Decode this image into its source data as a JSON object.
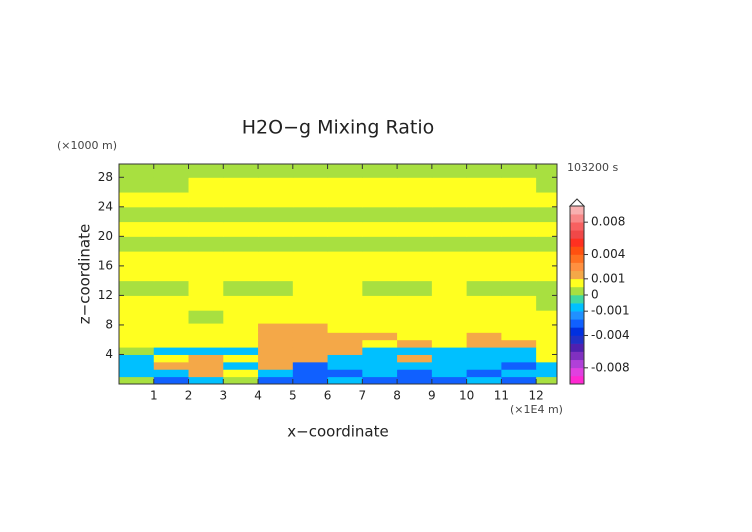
{
  "chart_data": {
    "type": "contour",
    "title": "H2O−g Mixing Ratio",
    "x_label": "x−coordinate",
    "y_label": "z−coordinate",
    "x_unit": "(×1E4 m)",
    "y_unit": "(×1000 m)",
    "time_label": "103200 s",
    "xlim": [
      0,
      12.6
    ],
    "ylim": [
      0,
      29.8
    ],
    "xticks": [
      1,
      2,
      3,
      4,
      5,
      6,
      7,
      8,
      9,
      10,
      11,
      12
    ],
    "yticks": [
      4,
      8,
      12,
      16,
      20,
      24,
      28
    ],
    "x": [
      0.5,
      1.5,
      2.5,
      3.5,
      4.5,
      5.5,
      6.5,
      7.5,
      8.5,
      9.5,
      10.5,
      11.5,
      12.5
    ],
    "y": [
      0.5,
      1.5,
      2.5,
      3.5,
      4.5,
      5.5,
      6.5,
      7.5,
      9,
      11,
      13,
      15,
      17,
      19,
      21,
      23,
      25,
      27,
      29
    ],
    "z": [
      [
        0.0002,
        -0.0025,
        -0.0007,
        0.0002,
        -0.0025,
        -0.0025,
        -0.0007,
        -0.0025,
        -0.0025,
        -0.0025,
        -0.0007,
        -0.0025,
        0.0002
      ],
      [
        -0.0007,
        -0.0007,
        0.0015,
        0.0007,
        -0.0007,
        -0.0025,
        -0.0025,
        -0.0007,
        -0.0025,
        -0.0007,
        -0.0025,
        -0.0007,
        -0.0007
      ],
      [
        -0.0007,
        0.0015,
        0.0015,
        -0.0007,
        0.0015,
        -0.0025,
        -0.0007,
        -0.0007,
        -0.0007,
        -0.0007,
        -0.0007,
        -0.0025,
        -0.0007
      ],
      [
        -0.0007,
        0.0007,
        0.0015,
        0.0007,
        0.0015,
        0.0015,
        -0.0007,
        -0.0007,
        0.0015,
        -0.0007,
        -0.0007,
        -0.0007,
        0.0007
      ],
      [
        0.0002,
        -0.0007,
        -0.0007,
        -0.0007,
        0.0015,
        0.0015,
        0.0015,
        -0.0007,
        -0.0007,
        -0.0007,
        -0.0007,
        -0.0007,
        0.0007
      ],
      [
        0.0007,
        0.0007,
        0.0007,
        0.0007,
        0.0015,
        0.0015,
        0.0015,
        0.0007,
        0.0015,
        0.0007,
        0.0015,
        0.0015,
        0.0007
      ],
      [
        0.0007,
        0.0007,
        0.0007,
        0.0007,
        0.0015,
        0.0015,
        0.0015,
        0.0015,
        0.0007,
        0.0007,
        0.0015,
        0.0007,
        0.0007
      ],
      [
        0.0007,
        0.0007,
        0.0007,
        0.0007,
        0.0015,
        0.0015,
        0.0007,
        0.0007,
        0.0007,
        0.0007,
        0.0007,
        0.0007,
        0.0007
      ],
      [
        0.0007,
        0.0007,
        0.0002,
        0.0007,
        0.0007,
        0.0007,
        0.0007,
        0.0007,
        0.0007,
        0.0007,
        0.0007,
        0.0007,
        0.0007
      ],
      [
        0.0007,
        0.0007,
        0.0007,
        0.0007,
        0.0007,
        0.0007,
        0.0007,
        0.0007,
        0.0007,
        0.0007,
        0.0007,
        0.0007,
        0.0002
      ],
      [
        0.0002,
        0.0002,
        0.0007,
        0.0002,
        0.0002,
        0.0007,
        0.0007,
        0.0002,
        0.0002,
        0.0007,
        0.0002,
        0.0002,
        0.0002
      ],
      [
        0.0007,
        0.0007,
        0.0007,
        0.0007,
        0.0007,
        0.0007,
        0.0007,
        0.0007,
        0.0007,
        0.0007,
        0.0007,
        0.0007,
        0.0007
      ],
      [
        0.0007,
        0.0007,
        0.0007,
        0.0007,
        0.0007,
        0.0007,
        0.0007,
        0.0007,
        0.0007,
        0.0007,
        0.0007,
        0.0007,
        0.0007
      ],
      [
        0.0002,
        0.0002,
        0.0002,
        0.0002,
        0.0002,
        0.0002,
        0.0002,
        0.0002,
        0.0002,
        0.0002,
        0.0002,
        0.0002,
        0.0002
      ],
      [
        0.0007,
        0.0007,
        0.0007,
        0.0007,
        0.0007,
        0.0007,
        0.0007,
        0.0007,
        0.0007,
        0.0007,
        0.0007,
        0.0007,
        0.0007
      ],
      [
        0.0002,
        0.0002,
        0.0002,
        0.0002,
        0.0002,
        0.0002,
        0.0002,
        0.0002,
        0.0002,
        0.0002,
        0.0002,
        0.0002,
        0.0002
      ],
      [
        0.0007,
        0.0007,
        0.0007,
        0.0007,
        0.0007,
        0.0007,
        0.0007,
        0.0007,
        0.0007,
        0.0007,
        0.0007,
        0.0007,
        0.0007
      ],
      [
        0.0002,
        0.0002,
        0.0007,
        0.0007,
        0.0007,
        0.0007,
        0.0007,
        0.0007,
        0.0007,
        0.0007,
        0.0007,
        0.0007,
        0.0002
      ],
      [
        0.0002,
        0.0002,
        0.0002,
        0.0002,
        0.0002,
        0.0002,
        0.0002,
        0.0002,
        0.0002,
        0.0002,
        0.0002,
        0.0002,
        0.0002
      ]
    ],
    "colorbar": {
      "levels": [
        -0.01,
        -0.009,
        -0.008,
        -0.007,
        -0.006,
        -0.005,
        -0.004,
        -0.003,
        -0.002,
        -0.001,
        -0.0005,
        0,
        0.0005,
        0.001,
        0.002,
        0.003,
        0.004,
        0.005,
        0.006,
        0.007,
        0.008,
        0.009,
        0.01
      ],
      "colors": [
        "#ff28d2",
        "#e040e0",
        "#b040d8",
        "#8030c0",
        "#5020b0",
        "#2030c8",
        "#0030e0",
        "#1060ff",
        "#2090ff",
        "#00c0ff",
        "#40d8a0",
        "#a8e040",
        "#ffff20",
        "#f4a848",
        "#ff9040",
        "#ff7020",
        "#ff5010",
        "#ff3020",
        "#f04848",
        "#f86060",
        "#f88888",
        "#f8b0b0"
      ],
      "ticks": [
        0.008,
        0.004,
        0.001,
        0,
        -0.001,
        -0.004,
        -0.008
      ]
    }
  }
}
